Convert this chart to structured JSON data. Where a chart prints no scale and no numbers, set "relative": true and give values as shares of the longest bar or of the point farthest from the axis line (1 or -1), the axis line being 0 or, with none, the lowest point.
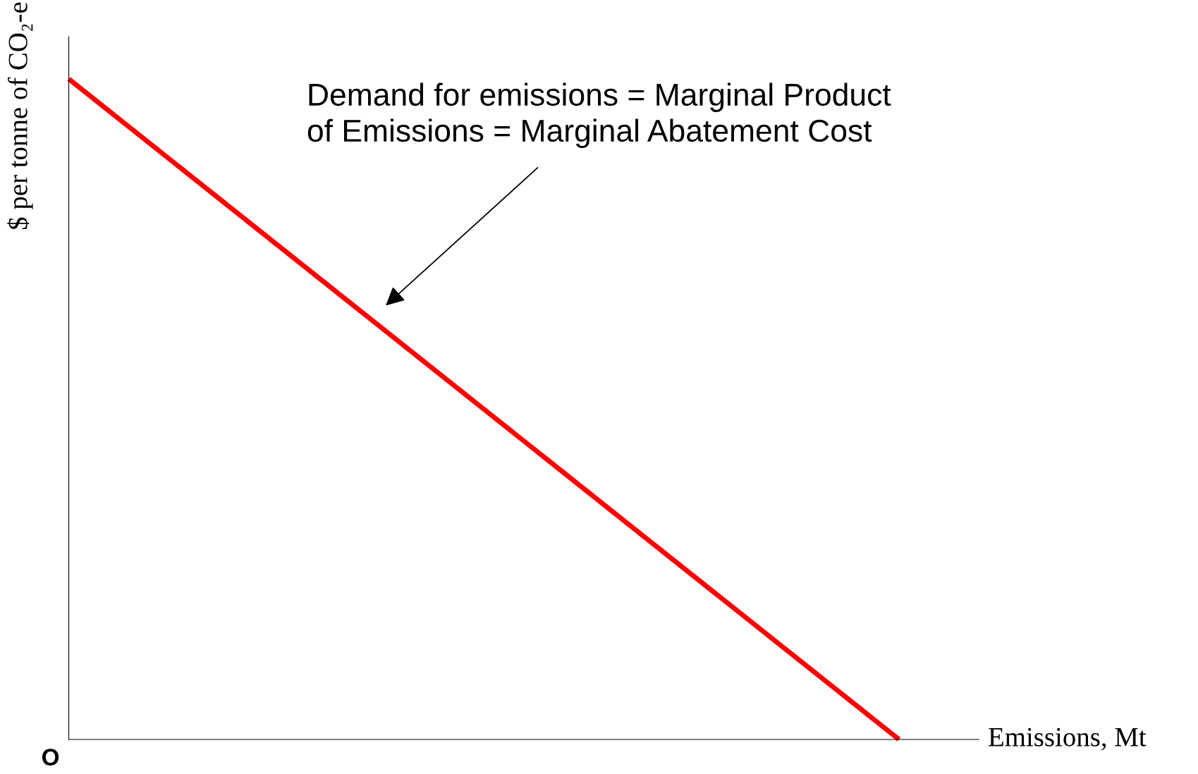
{
  "chart_data": {
    "type": "line",
    "relative": true,
    "categories": [
      null,
      null
    ],
    "series": [
      {
        "color": "#ff0000",
        "values": [
          1,
          0
        ]
      }
    ],
    "xlabel": "Emissions, Mt",
    "ylabel": "$ per tonne of CO₂-e",
    "annotations": [
      "Demand for emissions = Marginal Product\nof Emissions = Marginal Abatement Cost",
      "O"
    ],
    "grid": false,
    "legend": false,
    "marker": "none",
    "line_style": "solid"
  }
}
